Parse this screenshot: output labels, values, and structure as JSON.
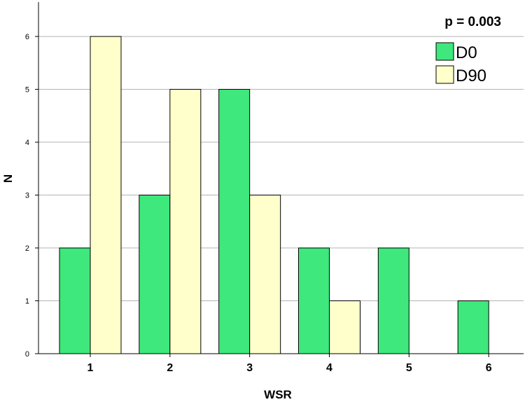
{
  "chart_data": {
    "type": "bar",
    "title": "",
    "xlabel": "WSR",
    "ylabel": "N",
    "categories": [
      "1",
      "2",
      "3",
      "4",
      "5",
      "6"
    ],
    "series": [
      {
        "name": "D0",
        "values": [
          2,
          3,
          5,
          2,
          2,
          1
        ],
        "color": "#3ee87c"
      },
      {
        "name": "D90",
        "values": [
          6,
          5,
          3,
          1,
          0,
          0
        ],
        "color": "#ffffcc"
      }
    ],
    "ylim": [
      0,
      6.65
    ],
    "yticks": [
      0,
      1,
      2,
      3,
      4,
      5,
      6
    ],
    "grid": true,
    "annotation": "p = 0.003",
    "legend_position": "top-right"
  }
}
